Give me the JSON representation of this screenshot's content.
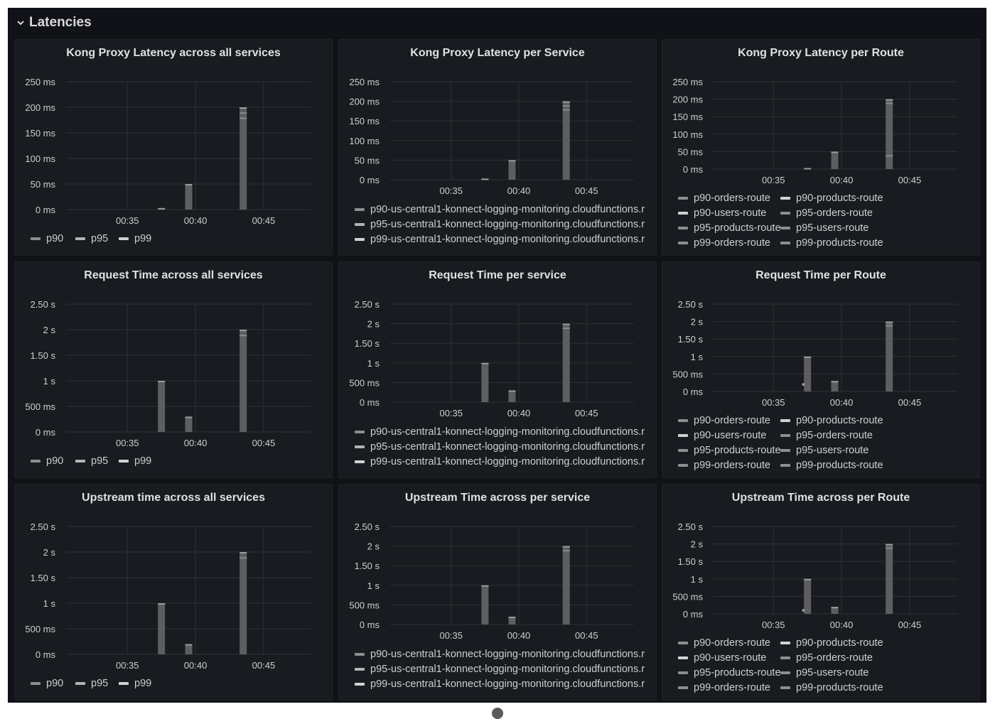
{
  "row": {
    "title": "Latencies"
  },
  "panels": [
    {
      "title": "Kong Proxy Latency across all services",
      "ylim": [
        0,
        250
      ],
      "yticks": [
        "250 ms",
        "200 ms",
        "150 ms",
        "100 ms",
        "50 ms",
        "0 ms"
      ],
      "legend_layout": "inline",
      "legend": [
        "p90",
        "p95",
        "p99"
      ],
      "legend_colors": [
        "#8e8e8e",
        "#b4b4b4",
        "#d2d2d2"
      ],
      "bars": [
        [
          37.5,
          3
        ],
        [
          39.5,
          50
        ],
        [
          43.5,
          200
        ]
      ],
      "bar_bands": [
        180,
        190
      ]
    },
    {
      "title": "Kong Proxy Latency per Service",
      "ylim": [
        0,
        250
      ],
      "yticks": [
        "250 ms",
        "200 ms",
        "150 ms",
        "100 ms",
        "50 ms",
        "0 ms"
      ],
      "legend_layout": "list",
      "legend": [
        "p90-us-central1-konnect-logging-monitoring.cloudfunctions.r",
        "p95-us-central1-konnect-logging-monitoring.cloudfunctions.r",
        "p99-us-central1-konnect-logging-monitoring.cloudfunctions.r"
      ],
      "legend_colors": [
        "#8e8e8e",
        "#b4b4b4",
        "#d2d2d2"
      ],
      "bars": [
        [
          37.5,
          3
        ],
        [
          39.5,
          50
        ],
        [
          43.5,
          200
        ]
      ],
      "bar_bands": [
        180,
        190
      ]
    },
    {
      "title": "Kong Proxy Latency per Route",
      "ylim": [
        0,
        250
      ],
      "yticks": [
        "250 ms",
        "200 ms",
        "150 ms",
        "100 ms",
        "50 ms",
        "0 ms"
      ],
      "legend_layout": "grid",
      "legend": [
        "p90-orders-route",
        "p90-products-route",
        "p90-users-route",
        "p95-orders-route",
        "p95-products-route",
        "p95-users-route",
        "p99-orders-route",
        "p99-products-route"
      ],
      "legend_colors": [
        "#8e8e8e",
        "#d2d2d2",
        "#d2d2d2",
        "#8e8e8e",
        "#8e8e8e",
        "#8e8e8e",
        "#8e8e8e",
        "#8e8e8e"
      ],
      "bars": [
        [
          37.5,
          3
        ],
        [
          39.5,
          50
        ],
        [
          43.5,
          200
        ]
      ],
      "bar_bands": [
        40,
        190
      ]
    },
    {
      "title": "Request Time across all services",
      "ylim": [
        0,
        2.5
      ],
      "yticks": [
        "2.50 s",
        "2 s",
        "1.50 s",
        "1 s",
        "500 ms",
        "0 ms"
      ],
      "legend_layout": "inline",
      "legend": [
        "p90",
        "p95",
        "p99"
      ],
      "legend_colors": [
        "#8e8e8e",
        "#b4b4b4",
        "#d2d2d2"
      ],
      "bars": [
        [
          37.5,
          1
        ],
        [
          39.5,
          0.3
        ],
        [
          43.5,
          2
        ]
      ],
      "bar_bands": [
        1.9
      ]
    },
    {
      "title": "Request Time per service",
      "ylim": [
        0,
        2.5
      ],
      "yticks": [
        "2.50 s",
        "2 s",
        "1.50 s",
        "1 s",
        "500 ms",
        "0 ms"
      ],
      "legend_layout": "list",
      "legend": [
        "p90-us-central1-konnect-logging-monitoring.cloudfunctions.r",
        "p95-us-central1-konnect-logging-monitoring.cloudfunctions.r",
        "p99-us-central1-konnect-logging-monitoring.cloudfunctions.r"
      ],
      "legend_colors": [
        "#8e8e8e",
        "#b4b4b4",
        "#d2d2d2"
      ],
      "bars": [
        [
          37.5,
          1
        ],
        [
          39.5,
          0.3
        ],
        [
          43.5,
          2
        ]
      ],
      "bar_bands": [
        1.9
      ]
    },
    {
      "title": "Request Time per Route",
      "ylim": [
        0,
        2.5
      ],
      "yticks": [
        "2.50 s",
        "2 s",
        "1.50 s",
        "1 s",
        "500 ms",
        "0 ms"
      ],
      "legend_layout": "grid",
      "legend": [
        "p90-orders-route",
        "p90-products-route",
        "p90-users-route",
        "p95-orders-route",
        "p95-products-route",
        "p95-users-route",
        "p99-orders-route",
        "p99-products-route"
      ],
      "legend_colors": [
        "#8e8e8e",
        "#d2d2d2",
        "#d2d2d2",
        "#8e8e8e",
        "#8e8e8e",
        "#8e8e8e",
        "#8e8e8e",
        "#8e8e8e"
      ],
      "bars": [
        [
          37.5,
          1
        ],
        [
          39.5,
          0.3
        ],
        [
          43.5,
          2
        ]
      ],
      "bar_bands": [
        1.9
      ],
      "dot": [
        37.2,
        0.2
      ]
    },
    {
      "title": "Upstream time across all services",
      "ylim": [
        0,
        2.5
      ],
      "yticks": [
        "2.50 s",
        "2 s",
        "1.50 s",
        "1 s",
        "500 ms",
        "0 ms"
      ],
      "legend_layout": "inline",
      "legend": [
        "p90",
        "p95",
        "p99"
      ],
      "legend_colors": [
        "#8e8e8e",
        "#b4b4b4",
        "#d2d2d2"
      ],
      "bars": [
        [
          37.5,
          1
        ],
        [
          39.5,
          0.2
        ],
        [
          43.5,
          2
        ]
      ],
      "bar_bands": [
        1.9
      ]
    },
    {
      "title": "Upstream Time across per service",
      "ylim": [
        0,
        2.5
      ],
      "yticks": [
        "2.50 s",
        "2 s",
        "1.50 s",
        "1 s",
        "500 ms",
        "0 ms"
      ],
      "legend_layout": "list",
      "legend": [
        "p90-us-central1-konnect-logging-monitoring.cloudfunctions.r",
        "p95-us-central1-konnect-logging-monitoring.cloudfunctions.r",
        "p99-us-central1-konnect-logging-monitoring.cloudfunctions.r"
      ],
      "legend_colors": [
        "#8e8e8e",
        "#b4b4b4",
        "#d2d2d2"
      ],
      "bars": [
        [
          37.5,
          1
        ],
        [
          39.5,
          0.2
        ],
        [
          43.5,
          2
        ]
      ],
      "bar_bands": [
        1.9
      ]
    },
    {
      "title": "Upstream Time across per Route",
      "ylim": [
        0,
        2.5
      ],
      "yticks": [
        "2.50 s",
        "2 s",
        "1.50 s",
        "1 s",
        "500 ms",
        "0 ms"
      ],
      "legend_layout": "grid",
      "legend": [
        "p90-orders-route",
        "p90-products-route",
        "p90-users-route",
        "p95-orders-route",
        "p95-products-route",
        "p95-users-route",
        "p99-orders-route",
        "p99-products-route"
      ],
      "legend_colors": [
        "#8e8e8e",
        "#d2d2d2",
        "#d2d2d2",
        "#8e8e8e",
        "#8e8e8e",
        "#8e8e8e",
        "#8e8e8e",
        "#8e8e8e"
      ],
      "bars": [
        [
          37.5,
          1
        ],
        [
          39.5,
          0.2
        ],
        [
          43.5,
          2
        ]
      ],
      "bar_bands": [
        1.9
      ],
      "dot": [
        37.2,
        0.1
      ]
    }
  ],
  "xticks": [
    "00:35",
    "00:40",
    "00:45"
  ],
  "xtick_values": [
    35,
    40,
    45
  ],
  "x_range_minutes": [
    30.5,
    48.5
  ],
  "colors": {
    "background": "#111217",
    "panel": "#181b1f",
    "bar": "#5e5e60",
    "grid": "#2f3136"
  },
  "chart_data": [
    {
      "type": "bar",
      "title": "Kong Proxy Latency across all services",
      "x": [
        "00:37",
        "00:39",
        "00:43"
      ],
      "series": [
        {
          "name": "p90",
          "values": [
            3,
            45,
            180
          ]
        },
        {
          "name": "p95",
          "values": [
            3,
            48,
            190
          ]
        },
        {
          "name": "p99",
          "values": [
            3,
            50,
            200
          ]
        }
      ],
      "ylim": [
        0,
        250
      ],
      "xlabel": "",
      "ylabel": ""
    },
    {
      "type": "bar",
      "title": "Kong Proxy Latency per Service",
      "x": [
        "00:37",
        "00:39",
        "00:43"
      ],
      "series": [
        {
          "name": "p90-us-central1-konnect-logging-monitoring.cloudfunctions.r",
          "values": [
            3,
            45,
            180
          ]
        },
        {
          "name": "p95-us-central1-konnect-logging-monitoring.cloudfunctions.r",
          "values": [
            3,
            48,
            190
          ]
        },
        {
          "name": "p99-us-central1-konnect-logging-monitoring.cloudfunctions.r",
          "values": [
            3,
            50,
            200
          ]
        }
      ],
      "ylim": [
        0,
        250
      ]
    },
    {
      "type": "bar",
      "title": "Kong Proxy Latency per Route",
      "x": [
        "00:37",
        "00:39",
        "00:43"
      ],
      "series": [
        {
          "name": "p90-orders-route",
          "values": [
            3,
            50,
            200
          ]
        }
      ],
      "ylim": [
        0,
        250
      ]
    },
    {
      "type": "bar",
      "title": "Request Time across all services",
      "x": [
        "00:37",
        "00:39",
        "00:43"
      ],
      "series": [
        {
          "name": "p90",
          "values": [
            0.95,
            0.28,
            1.9
          ]
        },
        {
          "name": "p99",
          "values": [
            1,
            0.3,
            2
          ]
        }
      ],
      "ylim": [
        0,
        2.5
      ]
    },
    {
      "type": "bar",
      "title": "Request Time per service",
      "x": [
        "00:37",
        "00:39",
        "00:43"
      ],
      "series": [
        {
          "name": "p99-us-central1-konnect-logging-monitoring.cloudfunctions.r",
          "values": [
            1,
            0.3,
            2
          ]
        }
      ],
      "ylim": [
        0,
        2.5
      ]
    },
    {
      "type": "bar",
      "title": "Request Time per Route",
      "x": [
        "00:37",
        "00:39",
        "00:43"
      ],
      "series": [
        {
          "name": "p99-orders-route",
          "values": [
            1,
            0.3,
            2
          ]
        }
      ],
      "ylim": [
        0,
        2.5
      ]
    },
    {
      "type": "bar",
      "title": "Upstream time across all services",
      "x": [
        "00:37",
        "00:39",
        "00:43"
      ],
      "series": [
        {
          "name": "p99",
          "values": [
            1,
            0.2,
            2
          ]
        }
      ],
      "ylim": [
        0,
        2.5
      ]
    },
    {
      "type": "bar",
      "title": "Upstream Time across per service",
      "x": [
        "00:37",
        "00:39",
        "00:43"
      ],
      "series": [
        {
          "name": "p99-us-central1-konnect-logging-monitoring.cloudfunctions.r",
          "values": [
            1,
            0.2,
            2
          ]
        }
      ],
      "ylim": [
        0,
        2.5
      ]
    },
    {
      "type": "bar",
      "title": "Upstream Time across per Route",
      "x": [
        "00:37",
        "00:39",
        "00:43"
      ],
      "series": [
        {
          "name": "p99-orders-route",
          "values": [
            1,
            0.2,
            2
          ]
        }
      ],
      "ylim": [
        0,
        2.5
      ]
    }
  ]
}
